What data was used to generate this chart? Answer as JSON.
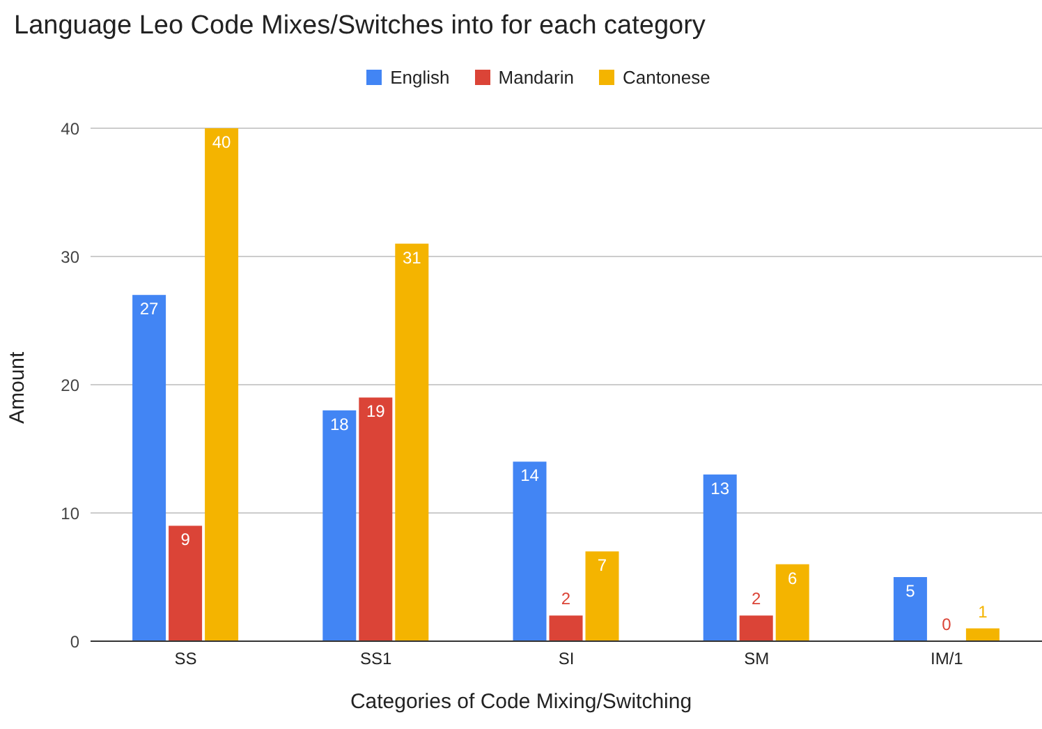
{
  "chart_data": {
    "type": "bar",
    "title": "Language Leo Code Mixes/Switches into for each category",
    "xlabel": "Categories of Code Mixing/Switching",
    "ylabel": "Amount",
    "categories": [
      "SS",
      "SS1",
      "SI",
      "SM",
      "IM/1"
    ],
    "series": [
      {
        "name": "English",
        "color": "#4285f4",
        "values": [
          27,
          18,
          14,
          13,
          5
        ]
      },
      {
        "name": "Mandarin",
        "color": "#db4437",
        "values": [
          9,
          19,
          2,
          2,
          0
        ]
      },
      {
        "name": "Cantonese",
        "color": "#f4b400",
        "values": [
          40,
          31,
          7,
          6,
          1
        ]
      }
    ],
    "ylim": [
      0,
      40
    ],
    "yticks": [
      0,
      10,
      20,
      30,
      40
    ],
    "grid": "y",
    "legend": "top",
    "data_labels": true
  }
}
